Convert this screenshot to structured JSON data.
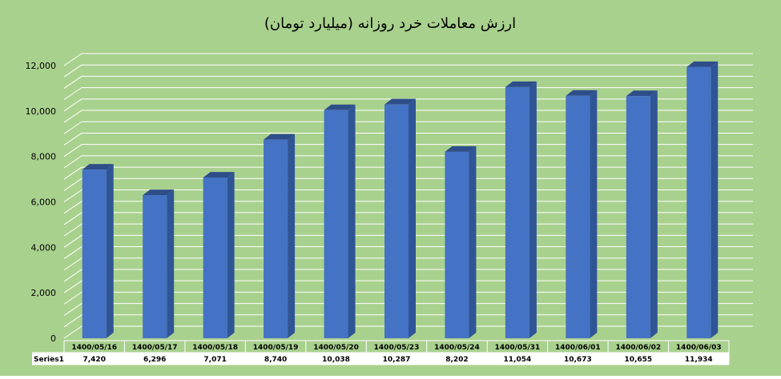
{
  "chart_data": {
    "type": "bar",
    "title": "ارزش معاملات خرد روزانه (میلیارد تومان)",
    "series_label": "Series1",
    "categories": [
      "1400/05/16",
      "1400/05/17",
      "1400/05/18",
      "1400/05/19",
      "1400/05/20",
      "1400/05/23",
      "1400/05/24",
      "1400/05/31",
      "1400/06/01",
      "1400/06/02",
      "1400/06/03"
    ],
    "values": [
      7420,
      6296,
      7071,
      8740,
      10038,
      10287,
      8202,
      11054,
      10673,
      10655,
      11934
    ],
    "value_labels": [
      "7,420",
      "6,296",
      "7,071",
      "8,740",
      "10,038",
      "10,287",
      "8,202",
      "11,054",
      "10,673",
      "10,655",
      "11,934"
    ],
    "yticks": [
      "0",
      "2,000",
      "4,000",
      "6,000",
      "8,000",
      "10,000",
      "12,000"
    ],
    "ylim": [
      0,
      12000
    ],
    "grid": true,
    "legend": "data-table",
    "colors": {
      "background": "#a9d18e",
      "bar_front": "#4472c4",
      "bar_side": "#2f5597",
      "bar_top": "#2e4e8a",
      "grid": "#ffffff",
      "text": "#000000"
    }
  }
}
